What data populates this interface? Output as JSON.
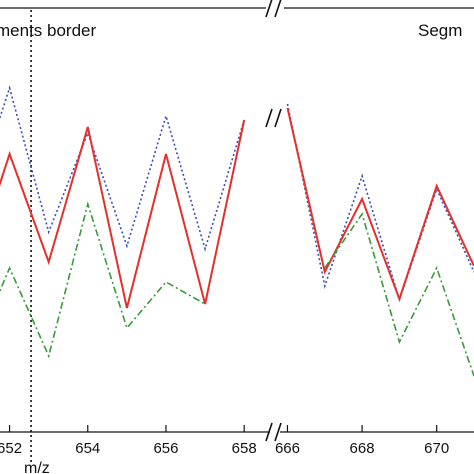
{
  "chart_data": {
    "type": "line",
    "xlabel": "m/z",
    "annotations": {
      "left": "ments border",
      "right": "Segm"
    },
    "break_mark": "//",
    "segments": [
      {
        "x_range": [
          651.5,
          658.2
        ],
        "ticks": [
          652,
          654,
          656,
          658
        ]
      },
      {
        "x_range": [
          665.8,
          671
        ],
        "ticks": [
          666,
          668,
          670
        ]
      }
    ],
    "vline_x": 652.55,
    "colors": {
      "blue": "#3a4cc0",
      "red": "#e4302c",
      "green": "#3a9a3a"
    },
    "series": [
      {
        "style": "dotted",
        "color": "#3a4cc0",
        "segments": [
          [
            [
              651.5,
              148
            ],
            [
              652,
              88
            ],
            [
              653,
              232
            ],
            [
              654,
              133
            ],
            [
              655,
              246
            ],
            [
              656,
              116
            ],
            [
              657,
              249
            ],
            [
              658,
              120
            ]
          ],
          [
            [
              666,
              104
            ],
            [
              667,
              286
            ],
            [
              668,
              176
            ],
            [
              669,
              300
            ],
            [
              670,
              189
            ],
            [
              671,
              272
            ]
          ]
        ]
      },
      {
        "style": "solid",
        "color": "#e4302c",
        "segments": [
          [
            [
              651.5,
              214
            ],
            [
              652,
              154
            ],
            [
              653,
              262
            ],
            [
              654,
              127
            ],
            [
              655,
              308
            ],
            [
              656,
              154
            ],
            [
              657,
              304
            ],
            [
              658,
              120
            ]
          ],
          [
            [
              666,
              108
            ],
            [
              667,
              272
            ],
            [
              668,
              199
            ],
            [
              669,
              299
            ],
            [
              670,
              186
            ],
            [
              671,
              266
            ]
          ]
        ]
      },
      {
        "style": "dashdot",
        "color": "#3a9a3a",
        "segments": [
          [
            [
              651.5,
              314
            ],
            [
              652,
              268
            ],
            [
              653,
              356
            ],
            [
              654,
              204
            ],
            [
              655,
              328
            ],
            [
              656,
              282
            ],
            [
              657,
              304
            ]
          ],
          [
            [
              667,
              268
            ],
            [
              668,
              214
            ],
            [
              669,
              342
            ],
            [
              670,
              268
            ],
            [
              671,
              376
            ]
          ]
        ]
      }
    ]
  }
}
